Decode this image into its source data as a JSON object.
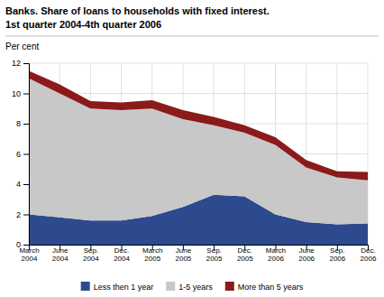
{
  "chart_data": {
    "type": "area",
    "title": "Banks. Share of loans to households with fixed interest.",
    "subtitle": "1st quarter 2004-4th quarter 2006",
    "ylabel": "Per cent",
    "categories": [
      "March\n2004",
      "June\n2004",
      "Sep.\n2004",
      "Dec.\n2004",
      "March\n2005",
      "June\n2005",
      "Sep.\n2005",
      "Dec.\n2005",
      "March\n2006",
      "June\n2006",
      "Sep.\n2006",
      "Dec.\n2006"
    ],
    "series": [
      {
        "name": "Less then 1 year",
        "color": "#2e4a8e",
        "values": [
          2.0,
          1.8,
          1.6,
          1.6,
          1.9,
          2.5,
          3.3,
          3.2,
          2.0,
          1.5,
          1.35,
          1.4
        ]
      },
      {
        "name": "1-5 years",
        "color": "#c8c8c8",
        "values": [
          9.0,
          8.2,
          7.4,
          7.3,
          7.1,
          5.8,
          4.6,
          4.2,
          4.6,
          3.6,
          3.1,
          2.85
        ]
      },
      {
        "name": "More than 5 years",
        "color": "#8b1a1a",
        "values": [
          0.5,
          0.6,
          0.5,
          0.5,
          0.55,
          0.6,
          0.55,
          0.5,
          0.5,
          0.5,
          0.4,
          0.55
        ]
      }
    ],
    "stacked": true,
    "ylim": [
      0,
      12
    ],
    "yticks": [
      0,
      2,
      4,
      6,
      8,
      10,
      12
    ],
    "grid": true,
    "legend": "bottom"
  }
}
